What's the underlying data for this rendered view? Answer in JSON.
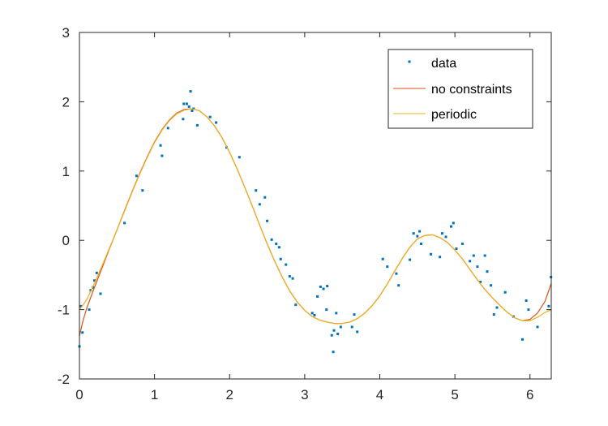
{
  "chart_data": {
    "type": "scatter",
    "title": "",
    "xlabel": "",
    "ylabel": "",
    "xlim": [
      0,
      6.2832
    ],
    "ylim": [
      -2,
      3
    ],
    "x_ticks": [
      "0",
      "1",
      "2",
      "3",
      "4",
      "5",
      "6"
    ],
    "y_ticks": [
      "-2",
      "-1",
      "0",
      "1",
      "2",
      "3"
    ],
    "grid": false,
    "legend": {
      "placement": "top-right",
      "entries": [
        "data",
        "no constraints",
        "periodic"
      ]
    },
    "colors": {
      "data": "#0072bd",
      "no_constraints": "#d95319",
      "periodic": "#edb120"
    },
    "series": [
      {
        "name": "data",
        "mode": "markers",
        "points": [
          [
            0.0,
            -1.53
          ],
          [
            0.02,
            -0.95
          ],
          [
            0.04,
            -1.33
          ],
          [
            0.13,
            -1.0
          ],
          [
            0.15,
            -0.72
          ],
          [
            0.18,
            -0.68
          ],
          [
            0.2,
            -0.58
          ],
          [
            0.23,
            -0.47
          ],
          [
            0.28,
            -0.77
          ],
          [
            0.6,
            0.25
          ],
          [
            0.76,
            0.93
          ],
          [
            0.84,
            0.72
          ],
          [
            1.08,
            1.37
          ],
          [
            1.1,
            1.22
          ],
          [
            1.18,
            1.62
          ],
          [
            1.38,
            1.75
          ],
          [
            1.39,
            1.97
          ],
          [
            1.43,
            1.97
          ],
          [
            1.46,
            1.93
          ],
          [
            1.48,
            2.15
          ],
          [
            1.5,
            1.87
          ],
          [
            1.52,
            1.9
          ],
          [
            1.57,
            1.66
          ],
          [
            1.74,
            1.78
          ],
          [
            1.82,
            1.7
          ],
          [
            1.96,
            1.34
          ],
          [
            2.13,
            1.2
          ],
          [
            2.35,
            0.72
          ],
          [
            2.4,
            0.52
          ],
          [
            2.47,
            0.62
          ],
          [
            2.5,
            0.28
          ],
          [
            2.56,
            0.01
          ],
          [
            2.62,
            -0.05
          ],
          [
            2.66,
            -0.1
          ],
          [
            2.68,
            -0.27
          ],
          [
            2.75,
            -0.35
          ],
          [
            2.8,
            -0.52
          ],
          [
            2.84,
            -0.55
          ],
          [
            2.88,
            -0.93
          ],
          [
            3.1,
            -1.05
          ],
          [
            3.13,
            -1.08
          ],
          [
            3.17,
            -0.81
          ],
          [
            3.21,
            -0.67
          ],
          [
            3.25,
            -0.7
          ],
          [
            3.29,
            -1.0
          ],
          [
            3.3,
            -0.66
          ],
          [
            3.36,
            -1.37
          ],
          [
            3.38,
            -1.61
          ],
          [
            3.39,
            -1.3
          ],
          [
            3.42,
            -1.05
          ],
          [
            3.44,
            -1.35
          ],
          [
            3.48,
            -1.25
          ],
          [
            3.63,
            -1.25
          ],
          [
            3.66,
            -1.07
          ],
          [
            3.7,
            -1.32
          ],
          [
            4.04,
            -0.27
          ],
          [
            4.1,
            -0.38
          ],
          [
            4.22,
            -0.48
          ],
          [
            4.25,
            -0.65
          ],
          [
            4.4,
            -0.28
          ],
          [
            4.45,
            0.1
          ],
          [
            4.5,
            0.06
          ],
          [
            4.53,
            0.13
          ],
          [
            4.55,
            -0.05
          ],
          [
            4.68,
            -0.2
          ],
          [
            4.8,
            -0.24
          ],
          [
            4.83,
            0.1
          ],
          [
            4.88,
            0.05
          ],
          [
            4.95,
            0.2
          ],
          [
            4.98,
            0.25
          ],
          [
            5.02,
            -0.12
          ],
          [
            5.1,
            -0.05
          ],
          [
            5.2,
            -0.3
          ],
          [
            5.25,
            -0.22
          ],
          [
            5.3,
            -0.38
          ],
          [
            5.34,
            -0.6
          ],
          [
            5.4,
            -0.22
          ],
          [
            5.43,
            -0.45
          ],
          [
            5.48,
            -0.65
          ],
          [
            5.52,
            -1.07
          ],
          [
            5.56,
            -0.97
          ],
          [
            5.67,
            -0.75
          ],
          [
            5.78,
            -1.1
          ],
          [
            5.9,
            -1.43
          ],
          [
            5.95,
            -0.87
          ],
          [
            5.98,
            -1.0
          ],
          [
            6.1,
            -1.25
          ],
          [
            6.25,
            -0.95
          ],
          [
            6.28,
            -0.53
          ]
        ]
      },
      {
        "name": "no constraints",
        "mode": "line",
        "points": [
          [
            0.0,
            -1.38
          ],
          [
            0.05,
            -1.15
          ],
          [
            0.1,
            -0.97
          ],
          [
            0.2,
            -0.68
          ],
          [
            0.3,
            -0.4
          ],
          [
            0.4,
            -0.12
          ],
          [
            0.5,
            0.15
          ],
          [
            0.6,
            0.43
          ],
          [
            0.7,
            0.7
          ],
          [
            0.8,
            0.96
          ],
          [
            0.9,
            1.2
          ],
          [
            1.0,
            1.42
          ],
          [
            1.1,
            1.6
          ],
          [
            1.2,
            1.74
          ],
          [
            1.3,
            1.84
          ],
          [
            1.4,
            1.89
          ],
          [
            1.5,
            1.9
          ],
          [
            1.6,
            1.87
          ],
          [
            1.7,
            1.78
          ],
          [
            1.8,
            1.65
          ],
          [
            1.9,
            1.48
          ],
          [
            2.0,
            1.27
          ],
          [
            2.1,
            1.03
          ],
          [
            2.2,
            0.77
          ],
          [
            2.3,
            0.5
          ],
          [
            2.4,
            0.22
          ],
          [
            2.5,
            -0.05
          ],
          [
            2.6,
            -0.3
          ],
          [
            2.7,
            -0.53
          ],
          [
            2.8,
            -0.73
          ],
          [
            2.9,
            -0.89
          ],
          [
            3.0,
            -1.01
          ],
          [
            3.1,
            -1.1
          ],
          [
            3.2,
            -1.15
          ],
          [
            3.3,
            -1.18
          ],
          [
            3.4,
            -1.2
          ],
          [
            3.5,
            -1.2
          ],
          [
            3.6,
            -1.18
          ],
          [
            3.7,
            -1.13
          ],
          [
            3.8,
            -1.05
          ],
          [
            3.9,
            -0.94
          ],
          [
            4.0,
            -0.8
          ],
          [
            4.1,
            -0.63
          ],
          [
            4.2,
            -0.44
          ],
          [
            4.3,
            -0.26
          ],
          [
            4.4,
            -0.1
          ],
          [
            4.5,
            0.02
          ],
          [
            4.6,
            0.07
          ],
          [
            4.7,
            0.08
          ],
          [
            4.8,
            0.04
          ],
          [
            4.9,
            -0.03
          ],
          [
            5.0,
            -0.14
          ],
          [
            5.1,
            -0.27
          ],
          [
            5.2,
            -0.42
          ],
          [
            5.3,
            -0.57
          ],
          [
            5.4,
            -0.71
          ],
          [
            5.5,
            -0.83
          ],
          [
            5.6,
            -0.94
          ],
          [
            5.7,
            -1.04
          ],
          [
            5.8,
            -1.12
          ],
          [
            5.9,
            -1.16
          ],
          [
            6.0,
            -1.14
          ],
          [
            6.1,
            -1.05
          ],
          [
            6.2,
            -0.88
          ],
          [
            6.2832,
            -0.62
          ]
        ]
      },
      {
        "name": "periodic",
        "mode": "line",
        "points": [
          [
            0.0,
            -1.0
          ],
          [
            0.05,
            -0.93
          ],
          [
            0.1,
            -0.85
          ],
          [
            0.2,
            -0.62
          ],
          [
            0.3,
            -0.37
          ],
          [
            0.4,
            -0.11
          ],
          [
            0.5,
            0.15
          ],
          [
            0.6,
            0.42
          ],
          [
            0.7,
            0.69
          ],
          [
            0.8,
            0.95
          ],
          [
            0.9,
            1.19
          ],
          [
            1.0,
            1.41
          ],
          [
            1.1,
            1.59
          ],
          [
            1.2,
            1.73
          ],
          [
            1.3,
            1.83
          ],
          [
            1.4,
            1.88
          ],
          [
            1.5,
            1.9
          ],
          [
            1.6,
            1.87
          ],
          [
            1.7,
            1.78
          ],
          [
            1.8,
            1.65
          ],
          [
            1.9,
            1.48
          ],
          [
            2.0,
            1.27
          ],
          [
            2.1,
            1.03
          ],
          [
            2.2,
            0.77
          ],
          [
            2.3,
            0.5
          ],
          [
            2.4,
            0.22
          ],
          [
            2.5,
            -0.05
          ],
          [
            2.6,
            -0.3
          ],
          [
            2.7,
            -0.53
          ],
          [
            2.8,
            -0.73
          ],
          [
            2.9,
            -0.89
          ],
          [
            3.0,
            -1.01
          ],
          [
            3.1,
            -1.1
          ],
          [
            3.2,
            -1.15
          ],
          [
            3.3,
            -1.18
          ],
          [
            3.4,
            -1.2
          ],
          [
            3.5,
            -1.2
          ],
          [
            3.6,
            -1.18
          ],
          [
            3.7,
            -1.13
          ],
          [
            3.8,
            -1.05
          ],
          [
            3.9,
            -0.94
          ],
          [
            4.0,
            -0.8
          ],
          [
            4.1,
            -0.63
          ],
          [
            4.2,
            -0.44
          ],
          [
            4.3,
            -0.26
          ],
          [
            4.4,
            -0.1
          ],
          [
            4.5,
            0.02
          ],
          [
            4.6,
            0.07
          ],
          [
            4.7,
            0.08
          ],
          [
            4.8,
            0.04
          ],
          [
            4.9,
            -0.03
          ],
          [
            5.0,
            -0.14
          ],
          [
            5.1,
            -0.27
          ],
          [
            5.2,
            -0.42
          ],
          [
            5.3,
            -0.57
          ],
          [
            5.4,
            -0.71
          ],
          [
            5.5,
            -0.83
          ],
          [
            5.6,
            -0.94
          ],
          [
            5.7,
            -1.04
          ],
          [
            5.8,
            -1.12
          ],
          [
            5.9,
            -1.16
          ],
          [
            6.0,
            -1.16
          ],
          [
            6.1,
            -1.11
          ],
          [
            6.2,
            -1.04
          ],
          [
            6.2832,
            -1.0
          ]
        ]
      }
    ]
  }
}
